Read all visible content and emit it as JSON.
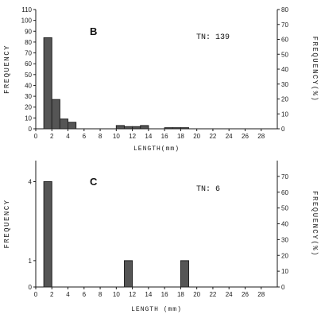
{
  "chart_data": [
    {
      "type": "bar",
      "panel_label": "B",
      "annotation": "TN: 139",
      "xlabel": "LENGTH(mm)",
      "ylabel": "FREQUENCY",
      "ylabel_right": "FREQUENCY(%)",
      "xlim": [
        0,
        30
      ],
      "xticks": [
        0,
        2,
        4,
        6,
        8,
        10,
        12,
        14,
        16,
        18,
        20,
        22,
        24,
        26,
        28
      ],
      "ylim": [
        0,
        110
      ],
      "yticks": [
        0,
        10,
        20,
        30,
        40,
        50,
        60,
        70,
        80,
        90,
        100,
        110
      ],
      "ylim_right": [
        0,
        80
      ],
      "yticks_right": [
        0,
        10,
        20,
        30,
        40,
        50,
        60,
        70,
        80
      ],
      "bin_width": 1,
      "bins": [
        {
          "x": 1,
          "value": 84
        },
        {
          "x": 2,
          "value": 27
        },
        {
          "x": 3,
          "value": 9
        },
        {
          "x": 4,
          "value": 6
        },
        {
          "x": 10,
          "value": 3
        },
        {
          "x": 11,
          "value": 2
        },
        {
          "x": 12,
          "value": 2
        },
        {
          "x": 13,
          "value": 3
        },
        {
          "x": 16,
          "value": 1
        },
        {
          "x": 17,
          "value": 1
        },
        {
          "x": 18,
          "value": 1
        }
      ]
    },
    {
      "type": "bar",
      "panel_label": "C",
      "annotation": "TN:  6",
      "xlabel": "LENGTH (mm)",
      "ylabel": "FREQUENCY",
      "ylabel_right": "FREQUENCY(%)",
      "xlim": [
        0,
        30
      ],
      "xticks": [
        0,
        2,
        4,
        6,
        8,
        10,
        12,
        14,
        16,
        18,
        20,
        22,
        24,
        26,
        28
      ],
      "ylim": [
        0,
        4.8
      ],
      "yticks": [
        0,
        1,
        4
      ],
      "ylim_right": [
        0,
        80
      ],
      "yticks_right": [
        0,
        10,
        20,
        30,
        40,
        50,
        60,
        70
      ],
      "bin_width": 1,
      "bins": [
        {
          "x": 1,
          "value": 4
        },
        {
          "x": 11,
          "value": 1
        },
        {
          "x": 18,
          "value": 1
        }
      ]
    }
  ]
}
